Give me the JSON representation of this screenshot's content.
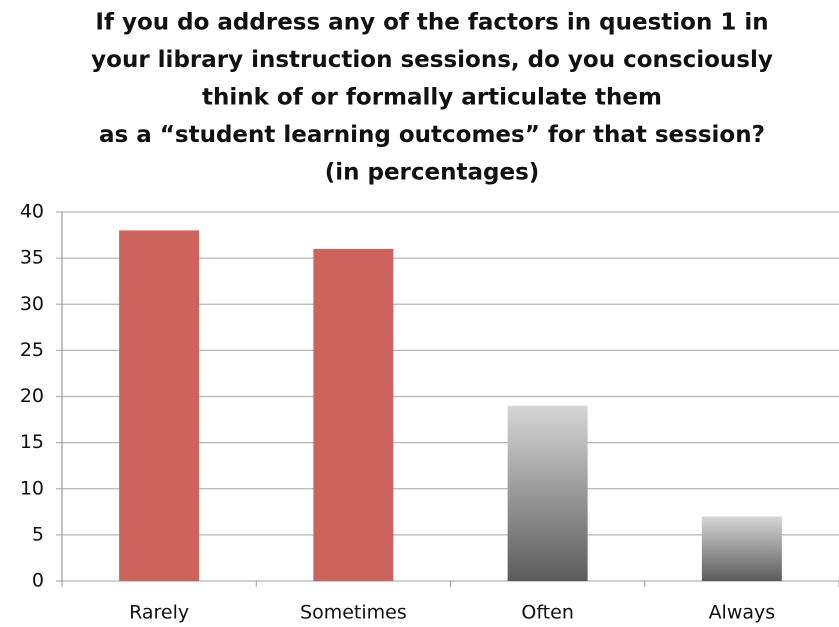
{
  "chart_data": {
    "type": "bar",
    "title": [
      "If you do address any of the factors in question 1 in",
      "your library instruction sessions, do you consciously",
      "think of or formally articulate them",
      "as a “student learning outcomes” for that session?",
      "(in percentages)"
    ],
    "categories": [
      "Rarely",
      "Sometimes",
      "Often",
      "Always"
    ],
    "values": [
      38,
      36,
      19,
      7
    ],
    "colors": [
      [
        "#cd635d",
        "#cd635d"
      ],
      [
        "#cd635d",
        "#cd635d"
      ],
      [
        "#d6d6d6",
        "#5c5c5c"
      ],
      [
        "#d6d6d6",
        "#5c5c5c"
      ]
    ],
    "ylim": [
      0,
      40
    ],
    "yticks": [
      0,
      5,
      10,
      15,
      20,
      25,
      30,
      35,
      40
    ],
    "grid": true
  }
}
